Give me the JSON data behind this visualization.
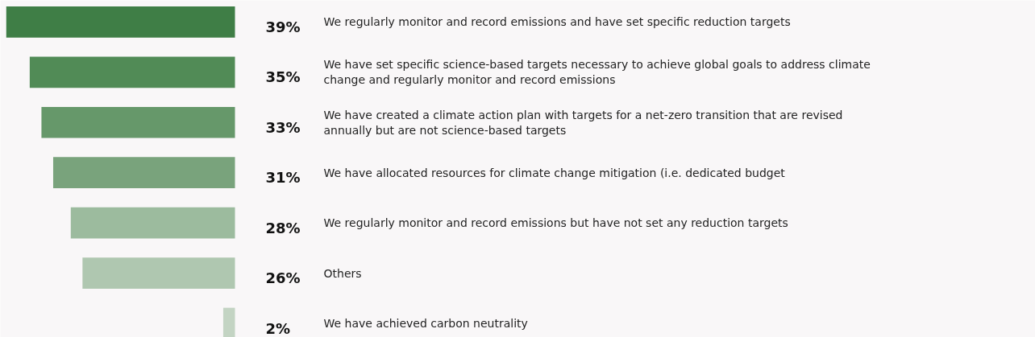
{
  "chart_data": {
    "type": "bar",
    "orientation": "horizontal",
    "categories": [
      "We regularly monitor and record emissions and have set specific reduction targets",
      "We have set specific science-based targets necessary to achieve global goals to address climate change and regularly monitor and record emissions",
      "We have created a climate action plan with targets for a net-zero transition that are revised annually but are not science-based targets",
      "We have allocated resources for climate change mitigation (i.e. dedicated budget",
      "We regularly monitor and record emissions but have not set any reduction targets",
      "Others",
      "We have achieved carbon neutrality"
    ],
    "values": [
      39,
      35,
      33,
      31,
      28,
      26,
      2
    ],
    "colors": [
      "#3f7e46",
      "#518b56",
      "#66986a",
      "#79a37c",
      "#9cbb9e",
      "#afc7b0",
      "#c3d4c3"
    ],
    "value_labels": [
      "39%",
      "35%",
      "33%",
      "31%",
      "28%",
      "26%",
      "2%"
    ],
    "xlim": [
      40,
      0
    ]
  }
}
